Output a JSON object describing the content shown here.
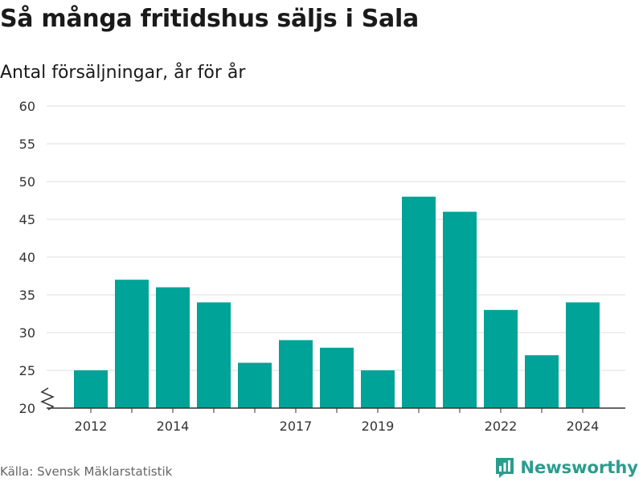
{
  "title": "Så många fritidshus säljs i Sala",
  "subtitle": "Antal försäljningar, år för år",
  "source": "Källa: Svensk Mäklarstatistik",
  "brand": "Newsworthy",
  "colors": {
    "bar": "#00a398",
    "grid": "#dddddd",
    "axis": "#333333",
    "brand": "#2a9d8f"
  },
  "chart_data": {
    "type": "bar",
    "categories": [
      "2012",
      "2013",
      "2014",
      "2015",
      "2016",
      "2017",
      "2018",
      "2019",
      "2020",
      "2021",
      "2022",
      "2023",
      "2024"
    ],
    "values": [
      25,
      37,
      36,
      34,
      26,
      29,
      28,
      25,
      48,
      46,
      33,
      27,
      34
    ],
    "x_tick_labels": [
      "2012",
      "",
      "2014",
      "",
      "",
      "2017",
      "",
      "2019",
      "",
      "",
      "2022",
      "",
      "2024"
    ],
    "y_ticks": [
      20,
      25,
      30,
      35,
      40,
      45,
      50,
      55,
      60
    ],
    "ylim": [
      20,
      60
    ],
    "broken_y_axis": true,
    "grid": true
  }
}
